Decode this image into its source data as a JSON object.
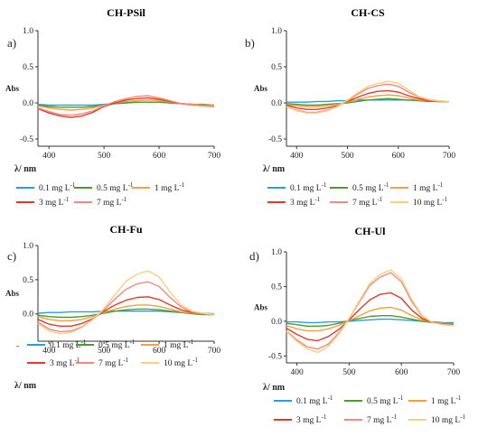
{
  "colors": {
    "0.1 mg L-1": "#2a9fd6",
    "0.5 mg L-1": "#4e9a2f",
    "1 mg L-1": "#f0a040",
    "3 mg L-1": "#e03a2a",
    "7 mg L-1": "#f08a80",
    "10 mg L-1": "#f7d080"
  },
  "chart_data": [
    {
      "type": "line",
      "panel_label": "a)",
      "title": "CH-PSil",
      "xlabel": "λ/ nm",
      "ylabel": "Abs",
      "xlim": [
        380,
        700
      ],
      "ylim": [
        -0.6,
        1.0
      ],
      "xticks": [
        400,
        500,
        600,
        700
      ],
      "yticks": [
        1.0,
        0.5,
        0.0,
        -0.5
      ],
      "x": [
        380,
        400,
        420,
        440,
        460,
        480,
        500,
        520,
        540,
        560,
        580,
        600,
        620,
        640,
        660,
        680,
        700
      ],
      "series": [
        {
          "name": "0.1 mg L-1",
          "values": [
            -0.02,
            -0.03,
            -0.03,
            -0.03,
            -0.03,
            -0.03,
            -0.02,
            -0.01,
            0.0,
            0.01,
            0.01,
            0.01,
            0.0,
            -0.01,
            -0.02,
            -0.03,
            -0.03
          ]
        },
        {
          "name": "0.5 mg L-1",
          "values": [
            -0.03,
            -0.05,
            -0.06,
            -0.06,
            -0.06,
            -0.05,
            -0.03,
            -0.01,
            0.0,
            0.01,
            0.01,
            0.01,
            0.0,
            -0.01,
            -0.02,
            -0.02,
            -0.03
          ]
        },
        {
          "name": "1 mg L-1",
          "values": [
            -0.04,
            -0.07,
            -0.09,
            -0.1,
            -0.09,
            -0.07,
            -0.03,
            0.0,
            0.02,
            0.03,
            0.04,
            0.03,
            0.01,
            -0.01,
            -0.02,
            -0.03,
            -0.03
          ]
        },
        {
          "name": "3 mg L-1",
          "values": [
            -0.08,
            -0.14,
            -0.18,
            -0.2,
            -0.18,
            -0.13,
            -0.05,
            0.0,
            0.04,
            0.06,
            0.07,
            0.05,
            0.02,
            -0.01,
            -0.03,
            -0.04,
            -0.05
          ]
        },
        {
          "name": "7 mg L-1",
          "values": [
            -0.07,
            -0.12,
            -0.16,
            -0.17,
            -0.15,
            -0.11,
            -0.04,
            0.02,
            0.06,
            0.09,
            0.1,
            0.07,
            0.03,
            -0.01,
            -0.03,
            -0.04,
            -0.05
          ]
        }
      ],
      "legend": [
        "0.1 mg L-1",
        "0.5 mg L-1",
        "1 mg L-1",
        "3 mg L-1",
        "7 mg L-1"
      ]
    },
    {
      "type": "line",
      "panel_label": "b)",
      "title": "CH-CS",
      "xlabel": "λ/ nm",
      "ylabel": "Abs",
      "xlim": [
        380,
        700
      ],
      "ylim": [
        -0.6,
        1.0
      ],
      "xticks": [
        400,
        500,
        600,
        700
      ],
      "yticks": [
        1.0,
        0.5,
        0.0,
        -0.5
      ],
      "x": [
        380,
        400,
        420,
        440,
        460,
        480,
        500,
        520,
        540,
        560,
        580,
        600,
        620,
        640,
        660,
        680,
        700
      ],
      "series": [
        {
          "name": "0.1 mg L-1",
          "values": [
            0.01,
            0.01,
            0.01,
            0.02,
            0.02,
            0.03,
            0.03,
            0.04,
            0.04,
            0.04,
            0.04,
            0.04,
            0.04,
            0.03,
            0.03,
            0.02,
            0.02
          ]
        },
        {
          "name": "0.5 mg L-1",
          "values": [
            -0.01,
            -0.02,
            -0.03,
            -0.03,
            -0.02,
            -0.01,
            0.0,
            0.02,
            0.04,
            0.05,
            0.06,
            0.05,
            0.04,
            0.03,
            0.02,
            0.02,
            0.02
          ]
        },
        {
          "name": "1 mg L-1",
          "values": [
            -0.02,
            -0.04,
            -0.05,
            -0.05,
            -0.04,
            -0.02,
            0.01,
            0.05,
            0.08,
            0.1,
            0.11,
            0.1,
            0.07,
            0.04,
            0.03,
            0.02,
            0.02
          ]
        },
        {
          "name": "3 mg L-1",
          "values": [
            -0.03,
            -0.07,
            -0.09,
            -0.09,
            -0.07,
            -0.04,
            0.02,
            0.08,
            0.13,
            0.16,
            0.17,
            0.15,
            0.1,
            0.06,
            0.03,
            0.02,
            0.02
          ]
        },
        {
          "name": "7 mg L-1",
          "values": [
            -0.05,
            -0.1,
            -0.13,
            -0.13,
            -0.1,
            -0.05,
            0.03,
            0.12,
            0.2,
            0.24,
            0.26,
            0.23,
            0.15,
            0.08,
            0.04,
            0.02,
            0.02
          ]
        },
        {
          "name": "10 mg L-1",
          "values": [
            -0.05,
            -0.11,
            -0.14,
            -0.14,
            -0.11,
            -0.05,
            0.04,
            0.14,
            0.23,
            0.27,
            0.3,
            0.27,
            0.18,
            0.09,
            0.05,
            0.03,
            0.02
          ]
        }
      ],
      "legend": [
        "0.1 mg L-1",
        "0.5 mg L-1",
        "1 mg L-1",
        "3 mg L-1",
        "7 mg L-1",
        "10 mg L-1"
      ]
    },
    {
      "type": "line",
      "panel_label": "c)",
      "title": "CH-Fu",
      "xlabel": "λ/ nm",
      "ylabel": "Abs",
      "xlim": [
        380,
        700
      ],
      "ylim": [
        -0.4,
        1.0
      ],
      "xticks": [
        400,
        500,
        600,
        700
      ],
      "yticks": [
        1.0,
        0.5,
        0.0
      ],
      "x": [
        380,
        400,
        420,
        440,
        460,
        480,
        500,
        520,
        540,
        560,
        580,
        600,
        620,
        640,
        660,
        680,
        700
      ],
      "series": [
        {
          "name": "0.1 mg L-1",
          "values": [
            0.01,
            0.02,
            0.02,
            0.03,
            0.03,
            0.03,
            0.04,
            0.04,
            0.04,
            0.04,
            0.04,
            0.04,
            0.03,
            0.02,
            0.01,
            0.01,
            0.0
          ]
        },
        {
          "name": "0.5 mg L-1",
          "values": [
            -0.02,
            -0.04,
            -0.05,
            -0.05,
            -0.04,
            -0.02,
            0.01,
            0.04,
            0.06,
            0.07,
            0.07,
            0.06,
            0.04,
            0.02,
            0.0,
            -0.01,
            -0.01
          ]
        },
        {
          "name": "1 mg L-1",
          "values": [
            -0.04,
            -0.08,
            -0.1,
            -0.1,
            -0.08,
            -0.04,
            0.02,
            0.07,
            0.11,
            0.13,
            0.13,
            0.11,
            0.07,
            0.03,
            0.01,
            0.0,
            -0.01
          ]
        },
        {
          "name": "3 mg L-1",
          "values": [
            -0.08,
            -0.15,
            -0.18,
            -0.18,
            -0.14,
            -0.07,
            0.04,
            0.13,
            0.2,
            0.24,
            0.25,
            0.21,
            0.13,
            0.06,
            0.02,
            0.0,
            -0.01
          ]
        },
        {
          "name": "7 mg L-1",
          "values": [
            -0.12,
            -0.22,
            -0.26,
            -0.25,
            -0.19,
            -0.08,
            0.06,
            0.22,
            0.36,
            0.44,
            0.47,
            0.4,
            0.24,
            0.1,
            0.03,
            0.0,
            -0.01
          ]
        },
        {
          "name": "10 mg L-1",
          "values": [
            -0.14,
            -0.25,
            -0.29,
            -0.27,
            -0.2,
            -0.08,
            0.08,
            0.28,
            0.48,
            0.58,
            0.63,
            0.54,
            0.32,
            0.13,
            0.04,
            0.01,
            -0.01
          ]
        }
      ],
      "legend": [
        "0.1 mg L-1",
        "0.5 mg L-1",
        "1 mg L-1",
        "3 mg L-1",
        "7 mg L-1",
        "10 mg L-1"
      ]
    },
    {
      "type": "line",
      "panel_label": "d)",
      "title": "CH-Ul",
      "xlabel": "λ/ nm",
      "ylabel": "Abs",
      "xlim": [
        380,
        700
      ],
      "ylim": [
        -0.6,
        1.0
      ],
      "xticks": [
        400,
        500,
        600,
        700
      ],
      "yticks": [
        1.0,
        0.5,
        0.0,
        -0.5
      ],
      "x": [
        380,
        400,
        420,
        440,
        460,
        480,
        500,
        520,
        540,
        560,
        580,
        600,
        620,
        640,
        660,
        680,
        700
      ],
      "series": [
        {
          "name": "0.1 mg L-1",
          "values": [
            -0.01,
            -0.01,
            -0.02,
            -0.02,
            -0.01,
            -0.01,
            0.0,
            0.01,
            0.02,
            0.03,
            0.03,
            0.02,
            0.01,
            0.0,
            -0.01,
            -0.02,
            -0.02
          ]
        },
        {
          "name": "0.5 mg L-1",
          "values": [
            -0.03,
            -0.05,
            -0.07,
            -0.07,
            -0.06,
            -0.03,
            0.01,
            0.04,
            0.07,
            0.08,
            0.08,
            0.06,
            0.03,
            0.0,
            -0.02,
            -0.03,
            -0.03
          ]
        },
        {
          "name": "1 mg L-1",
          "values": [
            -0.06,
            -0.11,
            -0.14,
            -0.14,
            -0.11,
            -0.06,
            0.01,
            0.08,
            0.15,
            0.19,
            0.2,
            0.16,
            0.08,
            0.02,
            -0.02,
            -0.03,
            -0.04
          ]
        },
        {
          "name": "3 mg L-1",
          "values": [
            -0.1,
            -0.19,
            -0.26,
            -0.28,
            -0.22,
            -0.12,
            0.02,
            0.17,
            0.31,
            0.39,
            0.41,
            0.33,
            0.16,
            0.04,
            -0.02,
            -0.04,
            -0.05
          ]
        },
        {
          "name": "7 mg L-1",
          "values": [
            -0.14,
            -0.27,
            -0.37,
            -0.4,
            -0.33,
            -0.17,
            0.04,
            0.28,
            0.52,
            0.64,
            0.7,
            0.57,
            0.28,
            0.07,
            -0.02,
            -0.05,
            -0.06
          ]
        },
        {
          "name": "10 mg L-1",
          "values": [
            -0.15,
            -0.29,
            -0.4,
            -0.45,
            -0.36,
            -0.19,
            0.04,
            0.3,
            0.55,
            0.68,
            0.74,
            0.61,
            0.31,
            0.08,
            -0.02,
            -0.05,
            -0.06
          ]
        }
      ],
      "legend": [
        "0.1 mg L-1",
        "0.5 mg L-1",
        "1 mg L-1",
        "3 mg L-1",
        "7 mg L-1",
        "10 mg L-1"
      ]
    }
  ]
}
